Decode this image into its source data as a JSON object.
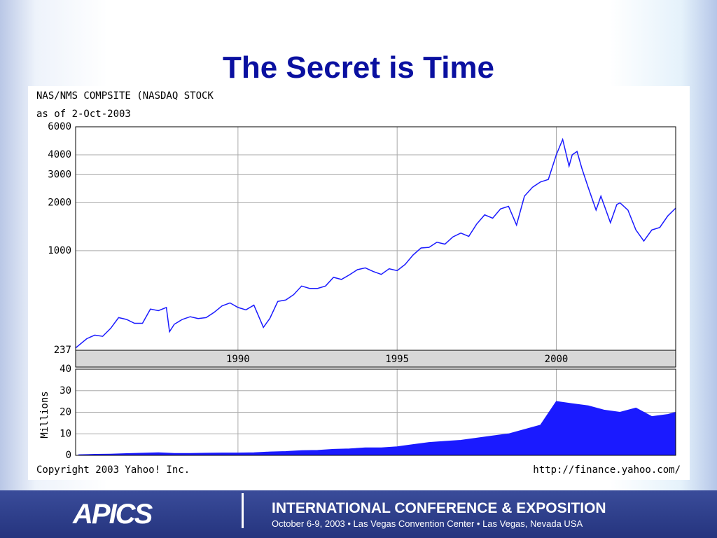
{
  "slide_title": "The Secret is Time",
  "chart_data": [
    {
      "type": "line",
      "title": "NAS/NMS COMPSITE (NASDAQ STOCK",
      "subtitle": "as of 2-Oct-2003",
      "color": "#1a1aff",
      "log_scale": true,
      "grid": true,
      "x": [
        1984.9,
        1985.25,
        1985.5,
        1985.75,
        1986,
        1986.25,
        1986.5,
        1986.75,
        1987,
        1987.25,
        1987.5,
        1987.75,
        1987.85,
        1988,
        1988.25,
        1988.5,
        1988.75,
        1989,
        1989.25,
        1989.5,
        1989.75,
        1990,
        1990.25,
        1990.5,
        1990.8,
        1991,
        1991.25,
        1991.5,
        1991.75,
        1992,
        1992.25,
        1992.5,
        1992.75,
        1993,
        1993.25,
        1993.5,
        1993.75,
        1994,
        1994.25,
        1994.5,
        1994.75,
        1995,
        1995.25,
        1995.5,
        1995.75,
        1996,
        1996.25,
        1996.5,
        1996.75,
        1997,
        1997.25,
        1997.5,
        1997.75,
        1998,
        1998.25,
        1998.5,
        1998.75,
        1999,
        1999.25,
        1999.5,
        1999.75,
        2000,
        2000.2,
        2000.4,
        2000.5,
        2000.65,
        2000.8,
        2001,
        2001.25,
        2001.4,
        2001.7,
        2001.9,
        2002,
        2002.25,
        2002.5,
        2002.75,
        2003,
        2003.25,
        2003.5,
        2003.75
      ],
      "values": [
        245,
        280,
        295,
        290,
        325,
        380,
        370,
        350,
        350,
        430,
        420,
        440,
        310,
        345,
        370,
        385,
        375,
        380,
        410,
        450,
        470,
        440,
        425,
        455,
        330,
        375,
        480,
        490,
        530,
        600,
        580,
        580,
        600,
        680,
        660,
        705,
        760,
        780,
        740,
        710,
        770,
        750,
        820,
        940,
        1040,
        1050,
        1130,
        1100,
        1220,
        1290,
        1230,
        1470,
        1680,
        1600,
        1830,
        1900,
        1450,
        2200,
        2500,
        2700,
        2800,
        4000,
        5000,
        3400,
        4000,
        4200,
        3300,
        2500,
        1800,
        2200,
        1500,
        1950,
        2000,
        1800,
        1350,
        1150,
        1350,
        1400,
        1650,
        1850
      ],
      "xlim": [
        1984.9,
        2003.75
      ],
      "xticks": [
        1990,
        1995,
        2000
      ],
      "ylim": [
        237,
        6000
      ],
      "yticks": [
        237,
        1000,
        2000,
        3000,
        4000,
        6000
      ]
    },
    {
      "type": "area",
      "ylabel": "Millions",
      "color": "#1a1aff",
      "grid": true,
      "x": [
        1985,
        1985.5,
        1986,
        1986.5,
        1987,
        1987.5,
        1988,
        1988.5,
        1989,
        1989.5,
        1990,
        1990.5,
        1991,
        1991.5,
        1992,
        1992.5,
        1993,
        1993.5,
        1994,
        1994.5,
        1995,
        1995.5,
        1996,
        1996.5,
        1997,
        1997.5,
        1998,
        1998.5,
        1999,
        1999.5,
        2000,
        2000.5,
        2001,
        2001.5,
        2002,
        2002.5,
        2003,
        2003.5,
        2003.75
      ],
      "values": [
        0.3,
        0.5,
        0.6,
        0.8,
        1,
        1.2,
        0.9,
        0.9,
        1,
        1.1,
        1.1,
        1.2,
        1.6,
        1.8,
        2.2,
        2.3,
        2.8,
        3,
        3.5,
        3.5,
        4,
        5,
        6,
        6.5,
        7,
        8,
        9,
        10,
        12,
        14,
        25,
        24,
        23,
        21,
        20,
        22,
        18,
        19,
        20
      ],
      "xlim": [
        1984.9,
        2003.75
      ],
      "xticks": [
        1990,
        1995,
        2000
      ],
      "ylim": [
        0,
        40
      ],
      "yticks": [
        0,
        10,
        20,
        30,
        40
      ]
    }
  ],
  "credits": {
    "left": "Copyright 2003 Yahoo! Inc.",
    "right": "http://finance.yahoo.com/"
  },
  "footer": {
    "logo": "APICS",
    "heading": "INTERNATIONAL CONFERENCE & EXPOSITION",
    "details": "October 6-9, 2003 • Las Vegas Convention Center • Las Vegas, Nevada USA"
  }
}
